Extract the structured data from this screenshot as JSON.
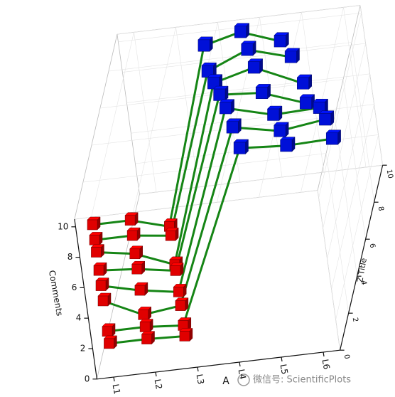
{
  "chart_data": {
    "type": "scatter3d",
    "x_label": "A",
    "y_label": "Comments",
    "z_label": "Z Title",
    "xlim": [
      0.6,
      6.4
    ],
    "ylim": [
      0,
      10.5
    ],
    "zlim": [
      0,
      10
    ],
    "xticks": [
      {
        "value": 1,
        "label": "L1"
      },
      {
        "value": 2,
        "label": "L2"
      },
      {
        "value": 3,
        "label": "L3"
      },
      {
        "value": 4,
        "label": "L4"
      },
      {
        "value": 5,
        "label": "L5"
      },
      {
        "value": 6,
        "label": "L6"
      }
    ],
    "yticks": [
      0,
      2,
      4,
      6,
      8,
      10
    ],
    "zticks": [
      0,
      2,
      4,
      6,
      8,
      10
    ],
    "grid": true,
    "link_color": "#158515",
    "series": [
      {
        "color": "#e00000",
        "x": [
          1,
          1.9,
          2.8,
          1,
          1.9,
          2.8,
          1,
          1.9,
          2.8,
          1,
          1.9,
          2.8,
          1,
          1.9,
          2.8,
          1,
          1.9,
          2.8,
          1,
          1.9,
          2.8,
          1,
          1.9,
          2.8
        ],
        "y": [
          10,
          10,
          9.3,
          9,
          9,
          8.7,
          8.2,
          7.8,
          6.8,
          7,
          6.8,
          6.4,
          6,
          5.4,
          5,
          5,
          3.8,
          4.1,
          3,
          3,
          2.8,
          2.2,
          2.2,
          2.1
        ],
        "z": [
          0,
          0,
          0,
          0,
          0,
          0,
          0,
          0,
          0,
          0,
          0,
          0,
          0,
          0,
          0,
          0,
          0,
          0,
          0,
          0,
          0,
          0,
          0,
          0
        ]
      },
      {
        "color": "#0010d8",
        "x": [
          2.6,
          3.5,
          4.4,
          2.6,
          3.6,
          4.6,
          2.7,
          3.7,
          4.8,
          2.8,
          3.8,
          4.8,
          2.9,
          4.0,
          5.1,
          3.0,
          4.1,
          5.2,
          3.1,
          4.2,
          5.3
        ],
        "y": [
          9.1,
          9.7,
          8.8,
          7.4,
          8.5,
          7.7,
          6.6,
          7.3,
          5.9,
          5.8,
          5.6,
          4.6,
          4.9,
          4.1,
          4.2,
          3.6,
          3.0,
          3.4,
          2.2,
          2.0,
          2.1
        ],
        "z": [
          10,
          10,
          10,
          10,
          10,
          10,
          10,
          10,
          10,
          10,
          10,
          10,
          10,
          10,
          10,
          10,
          10,
          10,
          10,
          10,
          10
        ]
      }
    ]
  },
  "watermark": "微信号: ScientificPlots"
}
